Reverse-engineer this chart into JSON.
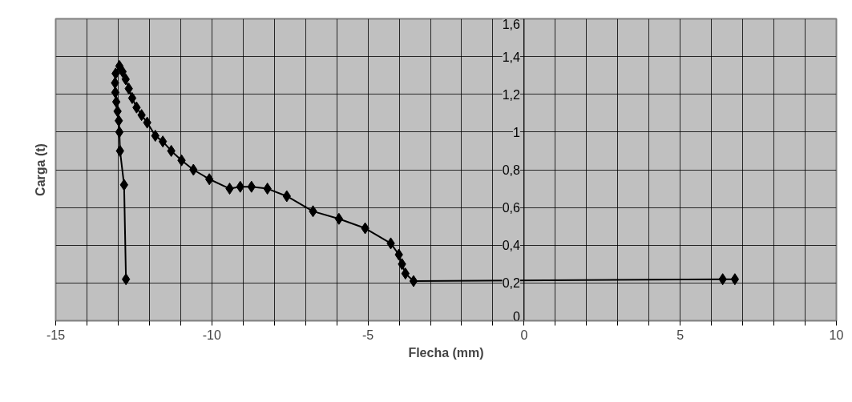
{
  "chart_data": {
    "type": "line",
    "xlabel": "Flecha (mm)",
    "ylabel": "Carga (t)",
    "x": [
      -12.75,
      -12.81,
      -12.94,
      -12.96,
      -12.98,
      -13.02,
      -13.06,
      -13.09,
      -13.1,
      -13.08,
      -12.96,
      -12.86,
      -12.76,
      -12.66,
      -12.55,
      -12.41,
      -12.25,
      -12.07,
      -11.81,
      -11.57,
      -11.3,
      -10.97,
      -10.59,
      -10.08,
      -9.43,
      -9.09,
      -8.73,
      -8.22,
      -7.6,
      -6.76,
      -5.93,
      -5.09,
      -4.27,
      -4.01,
      -3.91,
      -3.8,
      -3.54,
      6.36,
      6.75
    ],
    "series": [
      {
        "color": "#000000",
        "values": [
          0.22,
          0.72,
          0.9,
          1.0,
          1.06,
          1.11,
          1.16,
          1.21,
          1.26,
          1.31,
          1.35,
          1.32,
          1.28,
          1.23,
          1.18,
          1.13,
          1.09,
          1.05,
          0.98,
          0.95,
          0.9,
          0.85,
          0.8,
          0.75,
          0.7,
          0.71,
          0.71,
          0.7,
          0.66,
          0.58,
          0.54,
          0.49,
          0.41,
          0.35,
          0.3,
          0.25,
          0.21,
          0.22,
          0.22
        ]
      }
    ],
    "xlim": [
      -15,
      10
    ],
    "ylim": [
      0,
      1.6
    ],
    "xticks": [
      -15,
      {
        "value": -14,
        "label": null
      },
      {
        "value": -13,
        "label": null
      },
      {
        "value": -12,
        "label": null
      },
      {
        "value": -11,
        "label": null
      },
      -10,
      {
        "value": -9,
        "label": null
      },
      {
        "value": -8,
        "label": null
      },
      {
        "value": -7,
        "label": null
      },
      {
        "value": -6,
        "label": null
      },
      -5,
      {
        "value": -4,
        "label": null
      },
      {
        "value": -3,
        "label": null
      },
      {
        "value": -2,
        "label": null
      },
      {
        "value": -1,
        "label": null
      },
      0,
      {
        "value": 1,
        "label": null
      },
      {
        "value": 2,
        "label": null
      },
      {
        "value": 3,
        "label": null
      },
      {
        "value": 4,
        "label": null
      },
      5,
      {
        "value": 6,
        "label": null
      },
      {
        "value": 7,
        "label": null
      },
      {
        "value": 8,
        "label": null
      },
      {
        "value": 9,
        "label": null
      },
      10
    ],
    "yticks": [
      0,
      {
        "value": 0.2,
        "label": "0,2"
      },
      {
        "value": 0.4,
        "label": "0,4"
      },
      {
        "value": 0.6,
        "label": "0,6"
      },
      {
        "value": 0.8,
        "label": "0,8"
      },
      1,
      {
        "value": 1.2,
        "label": "1,2"
      },
      {
        "value": 1.4,
        "label": "1,4"
      },
      {
        "value": 1.6,
        "label": "1,6"
      }
    ],
    "grid": true,
    "marker": "diamond",
    "line_style": "solid"
  }
}
